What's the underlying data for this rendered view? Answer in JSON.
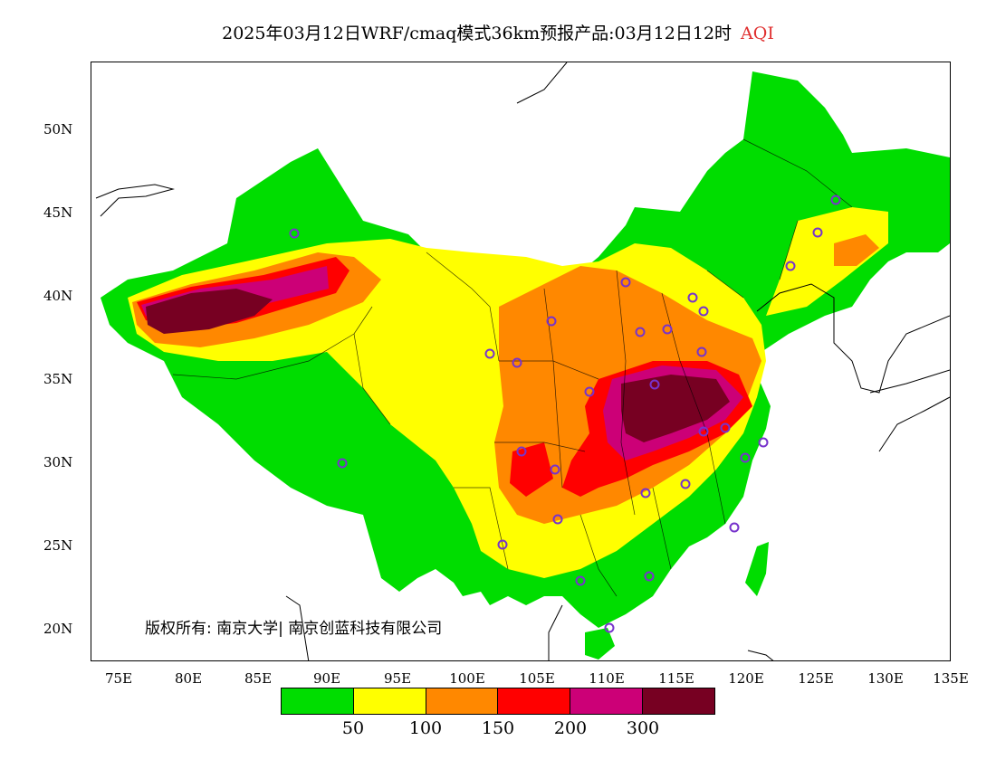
{
  "title": {
    "main": "2025年03月12日WRF/cmaq模式36km预报产品:03月12日12时",
    "suffix": "AQI",
    "suffix_color": "#e03030"
  },
  "map": {
    "lat_labels": [
      "50N",
      "45N",
      "40N",
      "35N",
      "30N",
      "25N",
      "20N"
    ],
    "lon_labels": [
      "75E",
      "80E",
      "85E",
      "90E",
      "95E",
      "100E",
      "105E",
      "110E",
      "115E",
      "120E",
      "125E",
      "130E",
      "135E"
    ],
    "station_marker": "circle-marker",
    "station_color": "#7733cc"
  },
  "copyright": "版权所有: 南京大学| 南京创蓝科技有限公司",
  "legend": {
    "swatches": [
      {
        "color": "#00dd00"
      },
      {
        "color": "#ffff00"
      },
      {
        "color": "#ff8800"
      },
      {
        "color": "#ff0000"
      },
      {
        "color": "#cc0077"
      },
      {
        "color": "#770022"
      }
    ],
    "ticks": [
      "50",
      "100",
      "150",
      "200",
      "300"
    ]
  }
}
